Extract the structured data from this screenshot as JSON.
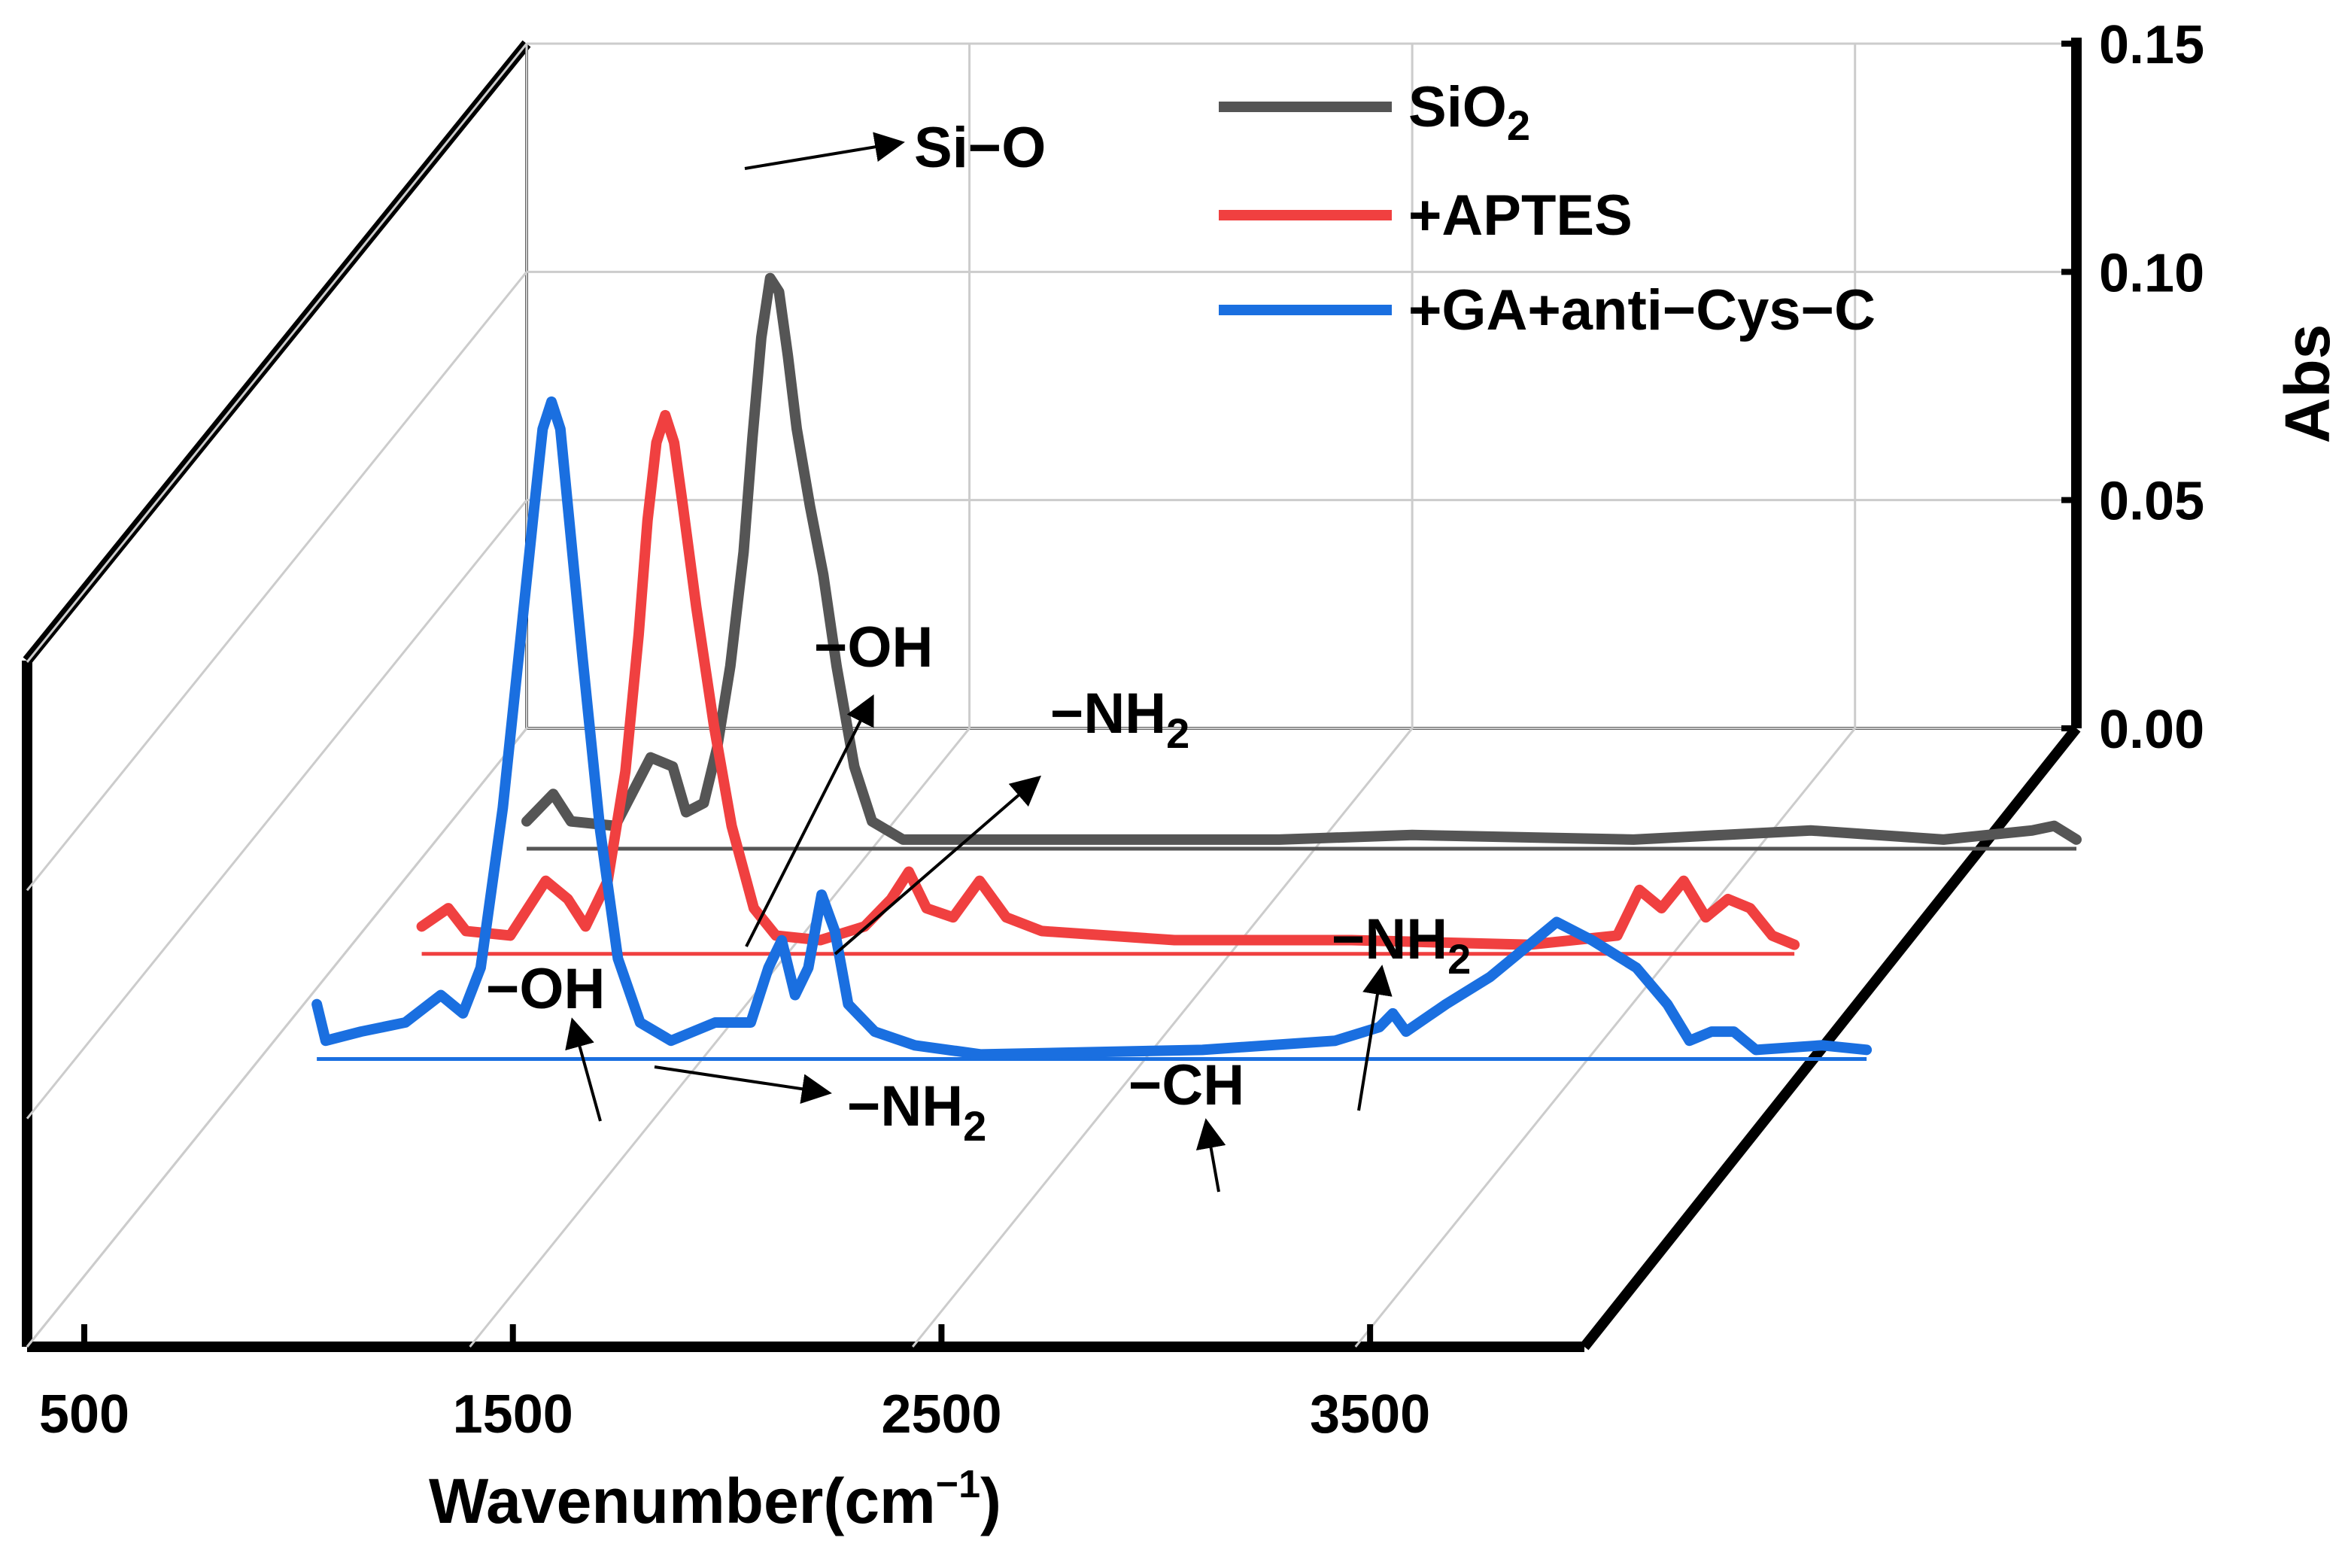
{
  "chart_data": {
    "type": "line",
    "style": "3d-waterfall",
    "xlabel_main": "Wavenumber(cm",
    "xlabel_sup": "−1",
    "xlabel_close": ")",
    "ylabel": "Abs",
    "xlim": [
      500,
      4000
    ],
    "ylim": [
      0.0,
      0.15
    ],
    "x_ticks": [
      500,
      1500,
      2500,
      3500
    ],
    "x_tick_labels": [
      "500",
      "1500",
      "2500",
      "3500"
    ],
    "y_ticks": [
      0.0,
      0.05,
      0.1,
      0.15
    ],
    "y_tick_labels": [
      "0.00",
      "0.05",
      "0.10",
      "0.15"
    ],
    "series": [
      {
        "name": "SiO2",
        "legend_main": "SiO",
        "legend_sub": "2",
        "color": "#555555",
        "points": [
          [
            500,
            0.006
          ],
          [
            560,
            0.012
          ],
          [
            600,
            0.006
          ],
          [
            700,
            0.005
          ],
          [
            780,
            0.02
          ],
          [
            830,
            0.018
          ],
          [
            860,
            0.008
          ],
          [
            900,
            0.01
          ],
          [
            930,
            0.022
          ],
          [
            960,
            0.04
          ],
          [
            990,
            0.065
          ],
          [
            1010,
            0.09
          ],
          [
            1030,
            0.112
          ],
          [
            1050,
            0.125
          ],
          [
            1070,
            0.122
          ],
          [
            1090,
            0.108
          ],
          [
            1110,
            0.092
          ],
          [
            1140,
            0.075
          ],
          [
            1170,
            0.06
          ],
          [
            1200,
            0.04
          ],
          [
            1240,
            0.018
          ],
          [
            1280,
            0.006
          ],
          [
            1350,
            0.002
          ],
          [
            1500,
            0.002
          ],
          [
            1800,
            0.002
          ],
          [
            2200,
            0.002
          ],
          [
            2500,
            0.003
          ],
          [
            3000,
            0.002
          ],
          [
            3400,
            0.004
          ],
          [
            3700,
            0.002
          ],
          [
            3900,
            0.004
          ],
          [
            3950,
            0.005
          ],
          [
            4000,
            0.002
          ]
        ]
      },
      {
        "name": "+APTES",
        "legend_main": "+APTES",
        "legend_sub": "",
        "color": "#f04040",
        "points": [
          [
            500,
            0.006
          ],
          [
            560,
            0.01
          ],
          [
            600,
            0.005
          ],
          [
            700,
            0.004
          ],
          [
            780,
            0.016
          ],
          [
            830,
            0.012
          ],
          [
            870,
            0.006
          ],
          [
            920,
            0.016
          ],
          [
            960,
            0.04
          ],
          [
            990,
            0.07
          ],
          [
            1010,
            0.095
          ],
          [
            1030,
            0.112
          ],
          [
            1050,
            0.118
          ],
          [
            1070,
            0.112
          ],
          [
            1090,
            0.098
          ],
          [
            1120,
            0.076
          ],
          [
            1160,
            0.05
          ],
          [
            1200,
            0.028
          ],
          [
            1250,
            0.01
          ],
          [
            1300,
            0.004
          ],
          [
            1400,
            0.003
          ],
          [
            1500,
            0.006
          ],
          [
            1560,
            0.012
          ],
          [
            1600,
            0.018
          ],
          [
            1640,
            0.01
          ],
          [
            1700,
            0.008
          ],
          [
            1760,
            0.016
          ],
          [
            1820,
            0.008
          ],
          [
            1900,
            0.005
          ],
          [
            2200,
            0.003
          ],
          [
            2600,
            0.003
          ],
          [
            3000,
            0.002
          ],
          [
            3200,
            0.004
          ],
          [
            3250,
            0.014
          ],
          [
            3300,
            0.01
          ],
          [
            3350,
            0.016
          ],
          [
            3400,
            0.008
          ],
          [
            3450,
            0.012
          ],
          [
            3500,
            0.01
          ],
          [
            3550,
            0.004
          ],
          [
            3600,
            0.002
          ]
        ]
      },
      {
        "name": "+GA+anti−Cys−C",
        "legend_main": "+GA+anti−Cys−C",
        "legend_sub": "",
        "color": "#1a6fe0",
        "points": [
          [
            500,
            0.012
          ],
          [
            520,
            0.004
          ],
          [
            600,
            0.006
          ],
          [
            700,
            0.008
          ],
          [
            780,
            0.014
          ],
          [
            830,
            0.01
          ],
          [
            870,
            0.02
          ],
          [
            920,
            0.055
          ],
          [
            960,
            0.092
          ],
          [
            990,
            0.12
          ],
          [
            1010,
            0.138
          ],
          [
            1030,
            0.144
          ],
          [
            1050,
            0.138
          ],
          [
            1070,
            0.118
          ],
          [
            1100,
            0.088
          ],
          [
            1140,
            0.05
          ],
          [
            1180,
            0.022
          ],
          [
            1230,
            0.008
          ],
          [
            1300,
            0.004
          ],
          [
            1400,
            0.008
          ],
          [
            1480,
            0.008
          ],
          [
            1520,
            0.02
          ],
          [
            1550,
            0.026
          ],
          [
            1580,
            0.014
          ],
          [
            1610,
            0.02
          ],
          [
            1640,
            0.036
          ],
          [
            1670,
            0.028
          ],
          [
            1700,
            0.012
          ],
          [
            1760,
            0.006
          ],
          [
            1850,
            0.003
          ],
          [
            2000,
            0.001
          ],
          [
            2500,
            0.002
          ],
          [
            2800,
            0.004
          ],
          [
            2900,
            0.007
          ],
          [
            2930,
            0.01
          ],
          [
            2960,
            0.006
          ],
          [
            3050,
            0.012
          ],
          [
            3150,
            0.018
          ],
          [
            3250,
            0.026
          ],
          [
            3300,
            0.03
          ],
          [
            3380,
            0.026
          ],
          [
            3480,
            0.02
          ],
          [
            3550,
            0.012
          ],
          [
            3600,
            0.004
          ],
          [
            3650,
            0.006
          ],
          [
            3700,
            0.006
          ],
          [
            3750,
            0.002
          ],
          [
            3900,
            0.003
          ],
          [
            4000,
            0.002
          ]
        ]
      }
    ],
    "annotations": [
      {
        "text_main": "Si−O",
        "text_sub": ""
      },
      {
        "text_main": "−OH",
        "text_sub": ""
      },
      {
        "text_main": "−NH",
        "text_sub": "2"
      },
      {
        "text_main": "−OH",
        "text_sub": ""
      },
      {
        "text_main": "−NH",
        "text_sub": "2"
      },
      {
        "text_main": "−CH",
        "text_sub": ""
      },
      {
        "text_main": "−NH",
        "text_sub": "2"
      }
    ]
  }
}
